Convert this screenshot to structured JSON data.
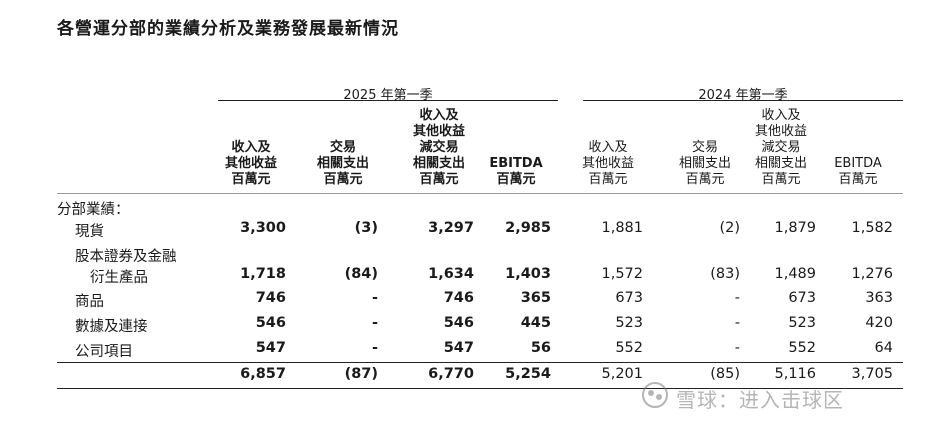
{
  "title": "各營運分部的業績分析及業務發展最新情況",
  "periods": [
    "2025 年第一季",
    "2024 年第一季"
  ],
  "columns": [
    [
      "收入及",
      "其他收益",
      "百萬元"
    ],
    [
      "交易",
      "相關支出",
      "百萬元"
    ],
    [
      "收入及",
      "其他收益",
      "減交易",
      "相關支出",
      "百萬元"
    ],
    [
      "EBITDA",
      "百萬元"
    ],
    [
      "收入及",
      "其他收益",
      "百萬元"
    ],
    [
      "交易",
      "相關支出",
      "百萬元"
    ],
    [
      "收入及",
      "其他收益",
      "減交易",
      "相關支出",
      "百萬元"
    ],
    [
      "EBITDA",
      "百萬元"
    ]
  ],
  "section_label": "分部業績：",
  "rows": [
    {
      "label": [
        "現貨"
      ],
      "values": [
        "3,300",
        "(3)",
        "3,297",
        "2,985",
        "1,881",
        "(2)",
        "1,879",
        "1,582"
      ]
    },
    {
      "label": [
        "股本證券及金融",
        "衍生產品"
      ],
      "values": [
        "1,718",
        "(84)",
        "1,634",
        "1,403",
        "1,572",
        "(83)",
        "1,489",
        "1,276"
      ]
    },
    {
      "label": [
        "商品"
      ],
      "values": [
        "746",
        "-",
        "746",
        "365",
        "673",
        "-",
        "673",
        "363"
      ]
    },
    {
      "label": [
        "數據及連接"
      ],
      "values": [
        "546",
        "-",
        "546",
        "445",
        "523",
        "-",
        "523",
        "420"
      ]
    },
    {
      "label": [
        "公司項目"
      ],
      "values": [
        "547",
        "-",
        "547",
        "56",
        "552",
        "-",
        "552",
        "64"
      ]
    }
  ],
  "total": {
    "values": [
      "6,857",
      "(87)",
      "6,770",
      "5,254",
      "5,201",
      "(85)",
      "5,116",
      "3,705"
    ]
  },
  "watermark": "雪球：进入击球区"
}
